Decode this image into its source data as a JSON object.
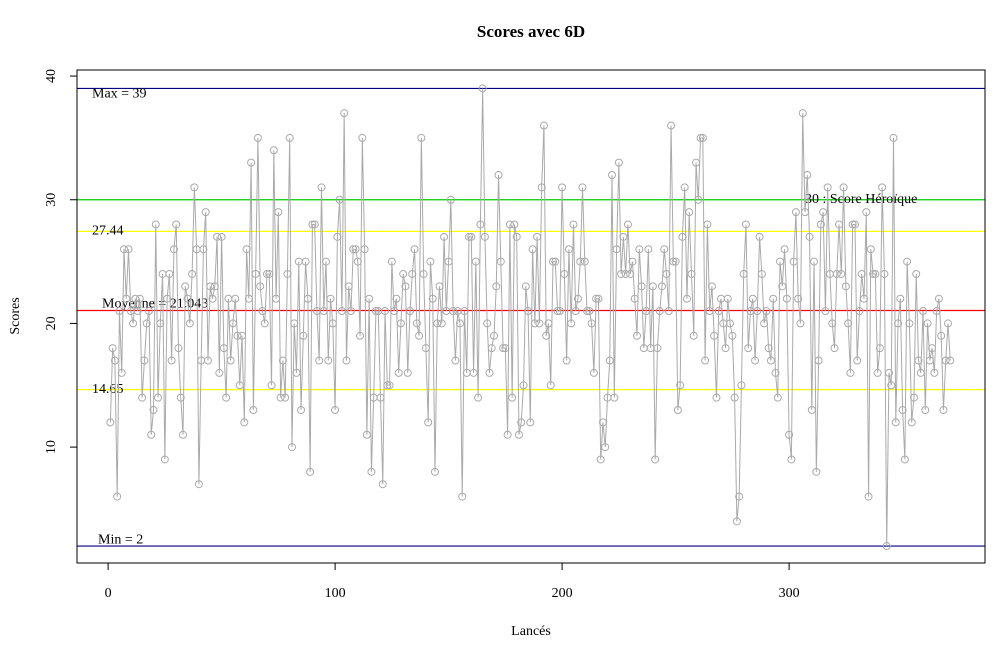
{
  "chart_data": {
    "type": "line",
    "title": "Scores avec 6D",
    "xlabel": "Lancés",
    "ylabel": "Scores",
    "xlim": [
      -13.7,
      386.3
    ],
    "ylim": [
      0.63,
      40.49
    ],
    "xticks": [
      0,
      100,
      200,
      300
    ],
    "yticks": [
      10,
      20,
      30,
      40
    ],
    "color": "#aaaaaa",
    "hlines": [
      {
        "value": 39,
        "color": "#000080",
        "label": "Max =  39"
      },
      {
        "value": 30,
        "color": "#00cc00",
        "label": "30 : Score Héroïque"
      },
      {
        "value": 27.44,
        "color": "#ffff00",
        "label": "27.44"
      },
      {
        "value": 21.043,
        "color": "#ff0000",
        "label": "Moyenne =  21.043"
      },
      {
        "value": 14.65,
        "color": "#ffff00",
        "label": "14.65"
      },
      {
        "value": 2,
        "color": "#000080",
        "label": "Min =  2"
      }
    ],
    "x": [
      1,
      2,
      3,
      4,
      5,
      6,
      7,
      8,
      9,
      10,
      11,
      12,
      13,
      14,
      15,
      16,
      17,
      18,
      19,
      20,
      21,
      22,
      23,
      24,
      25,
      26,
      27,
      28,
      29,
      30,
      31,
      32,
      33,
      34,
      35,
      36,
      37,
      38,
      39,
      40,
      41,
      42,
      43,
      44,
      45,
      46,
      47,
      48,
      49,
      50,
      51,
      52,
      53,
      54,
      55,
      56,
      57,
      58,
      59,
      60,
      61,
      62,
      63,
      64,
      65,
      66,
      67,
      68,
      69,
      70,
      71,
      72,
      73,
      74,
      75,
      76,
      77,
      78,
      79,
      80,
      81,
      82,
      83,
      84,
      85,
      86,
      87,
      88,
      89,
      90,
      91,
      92,
      93,
      94,
      95,
      96,
      97,
      98,
      99,
      100,
      101,
      102,
      103,
      104,
      105,
      106,
      107,
      108,
      109,
      110,
      111,
      112,
      113,
      114,
      115,
      116,
      117,
      118,
      119,
      120,
      121,
      122,
      123,
      124,
      125,
      126,
      127,
      128,
      129,
      130,
      131,
      132,
      133,
      134,
      135,
      136,
      137,
      138,
      139,
      140,
      141,
      142,
      143,
      144,
      145,
      146,
      147,
      148,
      149,
      150,
      151,
      152,
      153,
      154,
      155,
      156,
      157,
      158,
      159,
      160,
      161,
      162,
      163,
      164,
      165,
      166,
      167,
      168,
      169,
      170,
      171,
      172,
      173,
      174,
      175,
      176,
      177,
      178,
      179,
      180,
      181,
      182,
      183,
      184,
      185,
      186,
      187,
      188,
      189,
      190,
      191,
      192,
      193,
      194,
      195,
      196,
      197,
      198,
      199,
      200,
      201,
      202,
      203,
      204,
      205,
      206,
      207,
      208,
      209,
      210,
      211,
      212,
      213,
      214,
      215,
      216,
      217,
      218,
      219,
      220,
      221,
      222,
      223,
      224,
      225,
      226,
      227,
      228,
      229,
      230,
      231,
      232,
      233,
      234,
      235,
      236,
      237,
      238,
      239,
      240,
      241,
      242,
      243,
      244,
      245,
      246,
      247,
      248,
      249,
      250,
      251,
      252,
      253,
      254,
      255,
      256,
      257,
      258,
      259,
      260,
      261,
      262,
      263,
      264,
      265,
      266,
      267,
      268,
      269,
      270,
      271,
      272,
      273,
      274,
      275,
      276,
      277,
      278,
      279,
      280,
      281,
      282,
      283,
      284,
      285,
      286,
      287,
      288,
      289,
      290,
      291,
      292,
      293,
      294,
      295,
      296,
      297,
      298,
      299,
      300,
      301,
      302,
      303,
      304,
      305,
      306,
      307,
      308,
      309,
      310,
      311,
      312,
      313,
      314,
      315,
      316,
      317,
      318,
      319,
      320,
      321,
      322,
      323,
      324,
      325,
      326,
      327,
      328,
      329,
      330,
      331,
      332,
      333,
      334,
      335,
      336,
      337,
      338,
      339,
      340,
      341,
      342,
      343,
      344,
      345,
      346,
      347,
      348,
      349,
      350,
      351,
      352,
      353,
      354,
      355,
      356,
      357,
      358,
      359,
      360,
      361,
      362,
      363,
      364,
      365,
      366,
      367,
      368,
      369,
      370,
      371
    ],
    "values": [
      12,
      18,
      17,
      6,
      21,
      16,
      26,
      22,
      26,
      21,
      20,
      22,
      21,
      22,
      14,
      17,
      20,
      21,
      11,
      13,
      28,
      14,
      20,
      24,
      9,
      22,
      24,
      17,
      26,
      28,
      18,
      14,
      11,
      23,
      22,
      20,
      24,
      31,
      26,
      7,
      17,
      26,
      29,
      17,
      23,
      22,
      23,
      27,
      16,
      27,
      18,
      14,
      22,
      17,
      20,
      22,
      19,
      15,
      19,
      12,
      26,
      22,
      33,
      13,
      24,
      35,
      23,
      21,
      20,
      24,
      24,
      15,
      34,
      22,
      29,
      14,
      17,
      14,
      24,
      35,
      10,
      20,
      16,
      25,
      13,
      19,
      25,
      22,
      8,
      28,
      28,
      21,
      17,
      31,
      21,
      25,
      17,
      22,
      20,
      13,
      27,
      30,
      21,
      37,
      17,
      23,
      21,
      26,
      26,
      25,
      19,
      35,
      26,
      11,
      22,
      8,
      14,
      21,
      21,
      14,
      7,
      21,
      15,
      15,
      25,
      21,
      22,
      16,
      20,
      24,
      23,
      16,
      21,
      24,
      26,
      20,
      19,
      35,
      24,
      18,
      12,
      25,
      22,
      8,
      20,
      23,
      20,
      27,
      21,
      25,
      30,
      21,
      17,
      21,
      20,
      6,
      21,
      16,
      27,
      27,
      16,
      25,
      14,
      28,
      39,
      27,
      20,
      16,
      18,
      19,
      23,
      32,
      25,
      18,
      18,
      11,
      28,
      14,
      28,
      27,
      11,
      12,
      15,
      23,
      21,
      12,
      26,
      20,
      27,
      20,
      31,
      36,
      19,
      20,
      15,
      25,
      25,
      21,
      21,
      31,
      24,
      17,
      26,
      20,
      28,
      21,
      22,
      25,
      31,
      25,
      21,
      21,
      20,
      16,
      22,
      22,
      9,
      12,
      10,
      14,
      17,
      32,
      14,
      26,
      33,
      24,
      27,
      24,
      28,
      24,
      25,
      22,
      19,
      26,
      23,
      18,
      21,
      26,
      18,
      23,
      9,
      18,
      21,
      23,
      26,
      24,
      21,
      36,
      25,
      25,
      13,
      15,
      27,
      31,
      22,
      29,
      24,
      19,
      33,
      30,
      35,
      35,
      17,
      28,
      21,
      23,
      19,
      14,
      21,
      22,
      20,
      18,
      22,
      20,
      19,
      14,
      4,
      6,
      15,
      24,
      28,
      18,
      21,
      22,
      17,
      21,
      27,
      24,
      20,
      21,
      18,
      17,
      22,
      16,
      14,
      25,
      23,
      26,
      22,
      11,
      9,
      25,
      29,
      22,
      20,
      37,
      29,
      32,
      27,
      13,
      25,
      8,
      17,
      28,
      29,
      21,
      31,
      24,
      20,
      18,
      24,
      28,
      24,
      31,
      23,
      20,
      16,
      28,
      28,
      17,
      21,
      24,
      22,
      29,
      6,
      26,
      24,
      24,
      16,
      18,
      31,
      24,
      2,
      16,
      15,
      35,
      12,
      20,
      22,
      13,
      9,
      25,
      20,
      12,
      14,
      24,
      17,
      16,
      21,
      13,
      20,
      17,
      18,
      16,
      21,
      22,
      19,
      13,
      17,
      20,
      17
    ]
  }
}
